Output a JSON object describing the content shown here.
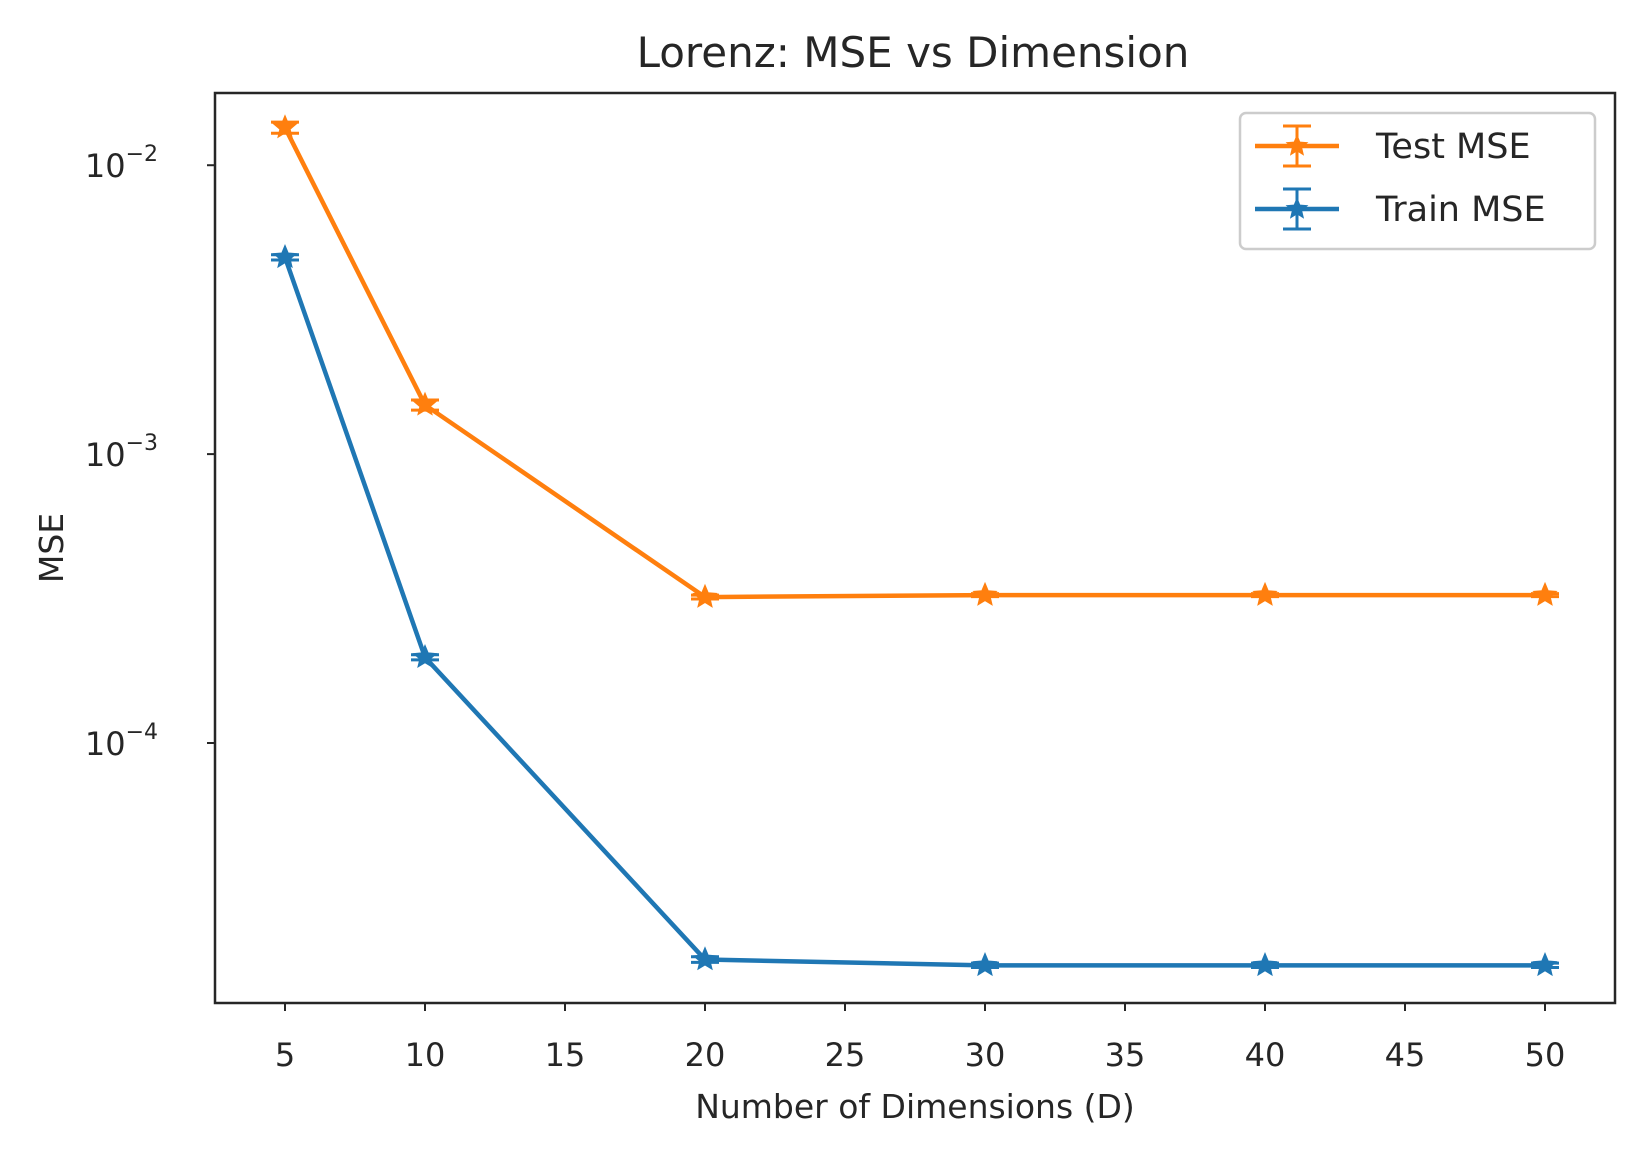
{
  "chart_data": {
    "type": "line",
    "title": "Lorenz: MSE vs Dimension",
    "xlabel": "Number of Dimensions (D)",
    "ylabel": "MSE",
    "yscale": "log",
    "x": [
      5,
      10,
      20,
      30,
      40,
      50
    ],
    "xlim": [
      2.5,
      52.5
    ],
    "xticks": [
      5,
      10,
      15,
      20,
      25,
      30,
      35,
      40,
      45,
      50
    ],
    "ylim_log10": [
      -4.9,
      -1.75
    ],
    "yticks": [
      {
        "exp": -2,
        "base": "10",
        "sup": "−2"
      },
      {
        "exp": -3,
        "base": "10",
        "sup": "−3"
      },
      {
        "exp": -4,
        "base": "10",
        "sup": "−4"
      }
    ],
    "series": [
      {
        "name": "Test MSE",
        "color": "#ff7f0e",
        "marker": "star",
        "values": [
          0.0135,
          0.00148,
          0.00032,
          0.000325,
          0.000325,
          0.000325
        ],
        "errors": [
          0.0006,
          6e-05,
          5e-06,
          4e-06,
          4e-06,
          4e-06
        ]
      },
      {
        "name": "Train MSE",
        "color": "#1f77b4",
        "marker": "star",
        "values": [
          0.0048,
          0.000198,
          1.78e-05,
          1.7e-05,
          1.7e-05,
          1.7e-05
        ],
        "errors": [
          0.0001,
          4e-06,
          4e-07,
          3e-07,
          3e-07,
          3e-07
        ]
      }
    ],
    "legend": {
      "position": "top-right",
      "entries": [
        "Test MSE",
        "Train MSE"
      ]
    },
    "grid": false
  }
}
